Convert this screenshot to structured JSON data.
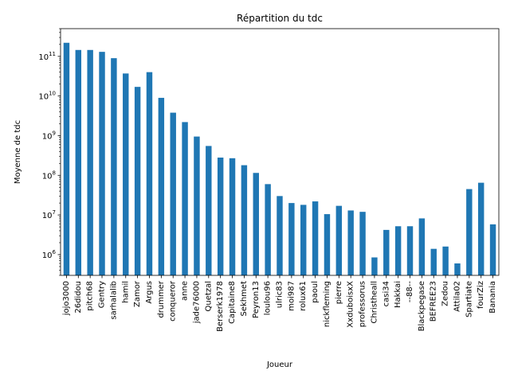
{
  "chart_data": {
    "type": "bar",
    "title": "Répartition du tdc",
    "xlabel": "Joueur",
    "ylabel": "Moyenne de tdc",
    "yscale": "log",
    "ylim": [
      300000.0,
      500000000000.0
    ],
    "ytick_values": [
      1000000.0,
      10000000.0,
      100000000.0,
      1000000000.0,
      10000000000.0,
      100000000000.0
    ],
    "ytick_labels": [
      {
        "base": "10",
        "exp": "6"
      },
      {
        "base": "10",
        "exp": "7"
      },
      {
        "base": "10",
        "exp": "8"
      },
      {
        "base": "10",
        "exp": "9"
      },
      {
        "base": "10",
        "exp": "10"
      },
      {
        "base": "10",
        "exp": "11"
      }
    ],
    "grid": false,
    "legend": "none",
    "bar_color": "#1f77b4",
    "categories": [
      "jojo3000",
      "26didou",
      "pitch68",
      "Gentry",
      "sarhalalib",
      "hamil",
      "Zamor",
      "Argus",
      "drummer",
      "conqueror",
      "anne",
      "jade76000",
      "Quetzal",
      "Berserk1978",
      "Capitaine8",
      "Sekhmet",
      "Peyron13",
      "loulou96",
      "ulric83",
      "moi987",
      "rolux61",
      "paoul",
      "nickfleming",
      "pierre",
      "XxduboisxX",
      "professorus",
      "Christheall",
      "casi34",
      "Hakkai",
      "--88--",
      "Blackpegase",
      "BEFREE23",
      "Zedou",
      "Attila02",
      "Spartiate",
      "fourZiz",
      "Banania"
    ],
    "values": [
      220000000000.0,
      145000000000.0,
      145000000000.0,
      130000000000.0,
      90000000000.0,
      37000000000.0,
      17000000000.0,
      40000000000.0,
      9000000000.0,
      3800000000.0,
      2200000000.0,
      950000000.0,
      550000000.0,
      280000000.0,
      270000000.0,
      180000000.0,
      115000000.0,
      60000000.0,
      30000000.0,
      20000000.0,
      18000000.0,
      22000000.0,
      10500000.0,
      17000000.0,
      13000000.0,
      12000000.0,
      850000.0,
      4200000.0,
      5200000.0,
      5200000.0,
      8200000.0,
      1400000.0,
      1600000.0,
      600000.0,
      45000000.0,
      65000000.0,
      5800000.0
    ]
  }
}
